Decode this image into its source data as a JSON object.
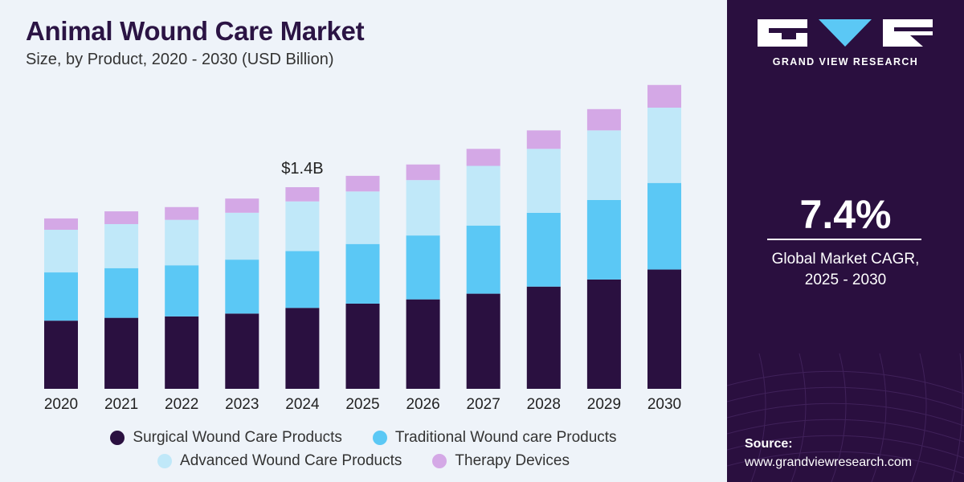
{
  "header": {
    "title": "Animal Wound Care Market",
    "subtitle": "Size, by Product, 2020 - 2030 (USD Billion)"
  },
  "colors": {
    "surgical": "#2a1040",
    "traditional": "#5bc8f5",
    "advanced": "#c0e8f9",
    "therapy": "#d4a8e6",
    "sidebar": "#2a0f3f"
  },
  "chart_data": {
    "type": "bar",
    "stacked": true,
    "categories": [
      "2020",
      "2021",
      "2022",
      "2023",
      "2024",
      "2025",
      "2026",
      "2027",
      "2028",
      "2029",
      "2030"
    ],
    "series": [
      {
        "name": "Surgical Wound Care Products",
        "values": [
          0.48,
          0.5,
          0.51,
          0.53,
          0.57,
          0.6,
          0.63,
          0.67,
          0.72,
          0.77,
          0.84
        ]
      },
      {
        "name": "Traditional Wound care Products",
        "values": [
          0.34,
          0.35,
          0.36,
          0.38,
          0.4,
          0.42,
          0.45,
          0.48,
          0.52,
          0.56,
          0.61
        ]
      },
      {
        "name": "Advanced Wound Care Products",
        "values": [
          0.3,
          0.31,
          0.32,
          0.33,
          0.35,
          0.37,
          0.39,
          0.42,
          0.45,
          0.49,
          0.53
        ]
      },
      {
        "name": "Therapy Devices",
        "values": [
          0.08,
          0.09,
          0.09,
          0.1,
          0.1,
          0.11,
          0.11,
          0.12,
          0.13,
          0.15,
          0.16
        ]
      }
    ],
    "annotation": {
      "category": "2024",
      "label": "$1.4B"
    },
    "ylim": [
      0,
      2.15
    ],
    "grid": false,
    "legend_position": "bottom"
  },
  "sidebar": {
    "brand": "GRAND VIEW RESEARCH",
    "cagr_value": "7.4%",
    "cagr_label_line1": "Global Market CAGR,",
    "cagr_label_line2": "2025 - 2030",
    "source_label": "Source:",
    "source_url": "www.grandviewresearch.com"
  }
}
